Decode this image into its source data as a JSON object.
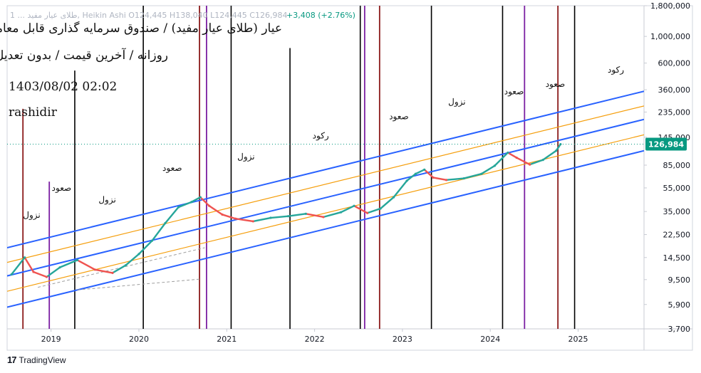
{
  "header": {
    "symbol_line": "1 ... طلای عیار مفید, Heikin Ashi  O124,445  H138,040  L124,445  C126,984",
    "change": "+3,408 (+2.76%)",
    "title": "عیار (طلای عیار مفید) / صندوق سرمایه گذاری قابل معامله",
    "subtitle": "روزانه / آخرین قیمت / بدون تعدیل",
    "datetime": "1403/08/02 02:02",
    "author": "rashidir"
  },
  "branding": {
    "logo_text": "TradingView",
    "logo_icon": "tradingview-logo-icon"
  },
  "chart_data": {
    "type": "line",
    "title": "",
    "scale": "log",
    "ylim": [
      3700,
      1800000
    ],
    "xlim": [
      2018.5,
      2025.75
    ],
    "y_ticks": [
      1800000,
      1000000,
      600000,
      360000,
      235000,
      145000,
      85000,
      55000,
      35000,
      22500,
      14500,
      9500,
      5900,
      3700
    ],
    "y_tick_labels": [
      "1,800,000",
      "1,000,000",
      "600,000",
      "360,000",
      "235,000",
      "145,000",
      "85,000",
      "55,000",
      "35,000",
      "22,500",
      "14,500",
      "9,500",
      "5,900",
      "3,700"
    ],
    "x_ticks": [
      2019,
      2020,
      2021,
      2022,
      2023,
      2024,
      2025
    ],
    "x_tick_labels": [
      "2019",
      "2020",
      "2021",
      "2022",
      "2023",
      "2024",
      "2025"
    ],
    "last_price": 126984,
    "last_price_label": "126,984",
    "colors": {
      "up": "#26a69a",
      "down": "#ef5350",
      "channel_blue": "#2962ff",
      "channel_orange": "#f59e0b",
      "price_tag": "#089981"
    },
    "price_series": {
      "x": [
        2018.55,
        2018.7,
        2018.8,
        2018.95,
        2019.1,
        2019.3,
        2019.5,
        2019.7,
        2019.85,
        2020.0,
        2020.15,
        2020.3,
        2020.45,
        2020.6,
        2020.7,
        2020.8,
        2020.95,
        2021.1,
        2021.3,
        2021.5,
        2021.7,
        2021.9,
        2022.1,
        2022.3,
        2022.45,
        2022.6,
        2022.75,
        2022.9,
        2023.05,
        2023.15,
        2023.25,
        2023.35,
        2023.5,
        2023.7,
        2023.9,
        2024.05,
        2024.2,
        2024.3,
        2024.45,
        2024.6,
        2024.75,
        2024.8
      ],
      "y": [
        10500,
        14500,
        11000,
        10000,
        12000,
        13800,
        11500,
        10800,
        12500,
        15500,
        20000,
        28000,
        38000,
        42000,
        46000,
        39000,
        33000,
        30500,
        29000,
        31000,
        32000,
        33500,
        31500,
        34500,
        39000,
        34000,
        37000,
        46000,
        63000,
        72000,
        78000,
        67000,
        64000,
        66000,
        72000,
        84000,
        108000,
        98000,
        86000,
        94000,
        112000,
        126984
      ]
    },
    "channel_lines": [
      {
        "name": "upper-blue",
        "color": "#2962ff",
        "x": [
          2018.5,
          2025.75
        ],
        "y": [
          17500,
          350000
        ]
      },
      {
        "name": "mid-blue",
        "color": "#2962ff",
        "x": [
          2018.5,
          2025.75
        ],
        "y": [
          10200,
          204000
        ]
      },
      {
        "name": "lower-blue",
        "color": "#2962ff",
        "x": [
          2018.5,
          2025.75
        ],
        "y": [
          5600,
          112000
        ]
      },
      {
        "name": "upper-orange",
        "color": "#f59e0b",
        "x": [
          2018.5,
          2025.75
        ],
        "y": [
          13200,
          264000
        ]
      },
      {
        "name": "lower-orange",
        "color": "#f59e0b",
        "x": [
          2018.5,
          2025.75
        ],
        "y": [
          7600,
          152000
        ]
      }
    ],
    "dashed_lines": [
      {
        "x": [
          2018.85,
          2020.75
        ],
        "y": [
          8200,
          17500
        ]
      },
      {
        "x": [
          2019.3,
          2020.7
        ],
        "y": [
          7800,
          9600
        ]
      }
    ],
    "vertical_lines": [
      {
        "x": 2018.68,
        "color": "#8b1a1a",
        "top": 250000
      },
      {
        "x": 2018.98,
        "color": "#7b1fa2",
        "top": 62000
      },
      {
        "x": 2019.27,
        "color": "#000000",
        "top": 520000
      },
      {
        "x": 2020.05,
        "color": "#000000",
        "top": 1800000
      },
      {
        "x": 2020.69,
        "color": "#8b1a1a",
        "top": 1800000
      },
      {
        "x": 2020.77,
        "color": "#7b1fa2",
        "top": 1800000
      },
      {
        "x": 2021.05,
        "color": "#000000",
        "top": 1800000
      },
      {
        "x": 2021.72,
        "color": "#000000",
        "top": 800000
      },
      {
        "x": 2022.52,
        "color": "#000000",
        "top": 1800000
      },
      {
        "x": 2022.57,
        "color": "#7b1fa2",
        "top": 1800000
      },
      {
        "x": 2022.74,
        "color": "#8b1a1a",
        "top": 1800000
      },
      {
        "x": 2023.33,
        "color": "#000000",
        "top": 1800000
      },
      {
        "x": 2024.14,
        "color": "#000000",
        "top": 1800000
      },
      {
        "x": 2024.39,
        "color": "#7b1fa2",
        "top": 1800000
      },
      {
        "x": 2024.77,
        "color": "#8b1a1a",
        "top": 1800000
      },
      {
        "x": 2024.96,
        "color": "#000000",
        "top": 1800000
      },
      {
        "x": 2025.76,
        "color": "#000000",
        "top": 1800000
      }
    ],
    "annotations": [
      {
        "text": "نزول",
        "x": 2018.78,
        "y": 31000
      },
      {
        "text": "صعود",
        "x": 2019.12,
        "y": 52000
      },
      {
        "text": "نزول",
        "x": 2019.64,
        "y": 41500
      },
      {
        "text": "صعود",
        "x": 2020.38,
        "y": 76000
      },
      {
        "text": "نزول",
        "x": 2021.22,
        "y": 95000
      },
      {
        "text": "رکود",
        "x": 2022.07,
        "y": 142000
      },
      {
        "text": "صعود",
        "x": 2022.96,
        "y": 205000
      },
      {
        "text": "نزول",
        "x": 2023.62,
        "y": 270000
      },
      {
        "text": "صعود",
        "x": 2024.27,
        "y": 330000
      },
      {
        "text": "صعود",
        "x": 2024.74,
        "y": 380000
      },
      {
        "text": "رکود",
        "x": 2025.43,
        "y": 500000
      }
    ]
  }
}
